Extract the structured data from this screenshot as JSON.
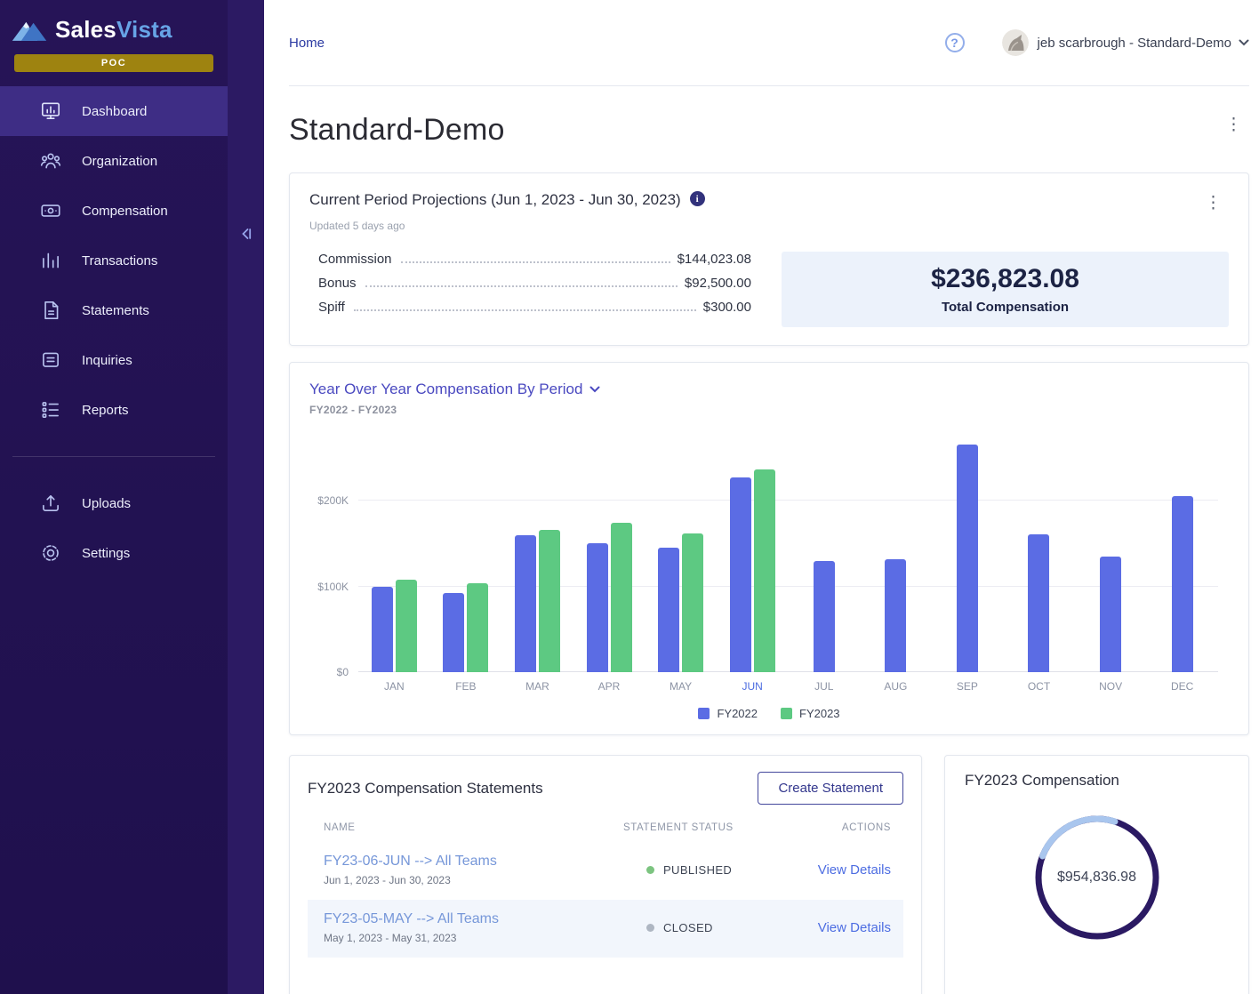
{
  "brand": {
    "name_primary": "Sales",
    "name_secondary": "Vista",
    "badge": "POC"
  },
  "icons": {
    "kebab_glyph": "⋮",
    "help_glyph": "?"
  },
  "sidebar": {
    "items": [
      {
        "label": "Dashboard",
        "icon": "dashboard-icon",
        "active": true
      },
      {
        "label": "Organization",
        "icon": "organization-icon",
        "active": false
      },
      {
        "label": "Compensation",
        "icon": "compensation-icon",
        "active": false
      },
      {
        "label": "Transactions",
        "icon": "transactions-icon",
        "active": false
      },
      {
        "label": "Statements",
        "icon": "statements-icon",
        "active": false
      },
      {
        "label": "Inquiries",
        "icon": "inquiries-icon",
        "active": false
      },
      {
        "label": "Reports",
        "icon": "reports-icon",
        "active": false
      }
    ],
    "secondary_items": [
      {
        "label": "Uploads",
        "icon": "upload-icon",
        "active": false
      },
      {
        "label": "Settings",
        "icon": "settings-icon",
        "active": false
      }
    ]
  },
  "topbar": {
    "breadcrumb": "Home",
    "user": "jeb scarbrough - Standard-Demo"
  },
  "page": {
    "title": "Standard-Demo"
  },
  "projections": {
    "title": "Current Period Projections (Jun 1, 2023 - Jun 30, 2023)",
    "updated": "Updated 5 days ago",
    "rows": [
      {
        "label": "Commission",
        "value": "$144,023.08"
      },
      {
        "label": "Bonus",
        "value": "$92,500.00"
      },
      {
        "label": "Spiff",
        "value": "$300.00"
      }
    ],
    "total": {
      "value": "$236,823.08",
      "label": "Total Compensation"
    }
  },
  "chart_card": {
    "title": "Year Over Year Compensation By Period",
    "subtitle": "FY2022 - FY2023"
  },
  "chart_data": {
    "type": "bar",
    "title": "Year Over Year Compensation By Period",
    "categories": [
      "JAN",
      "FEB",
      "MAR",
      "APR",
      "MAY",
      "JUN",
      "JUL",
      "AUG",
      "SEP",
      "OCT",
      "NOV",
      "DEC"
    ],
    "series": [
      {
        "name": "FY2022",
        "color": "#5b6ce4",
        "values": [
          100000,
          92000,
          160000,
          150000,
          145000,
          227000,
          130000,
          132000,
          265000,
          161000,
          135000,
          205000
        ]
      },
      {
        "name": "FY2023",
        "color": "#5dc982",
        "values": [
          108000,
          104000,
          166000,
          174000,
          162000,
          236000,
          null,
          null,
          null,
          null,
          null,
          null
        ]
      }
    ],
    "ylim": [
      0,
      280000
    ],
    "yticks": [
      {
        "value": 0,
        "label": "$0"
      },
      {
        "value": 100000,
        "label": "$100K"
      },
      {
        "value": 200000,
        "label": "$200K"
      }
    ],
    "highlight_category": "JUN",
    "grid": true,
    "legend_position": "bottom"
  },
  "statements": {
    "title": "FY2023 Compensation Statements",
    "create_button": "Create Statement",
    "columns": [
      "NAME",
      "STATEMENT STATUS",
      "ACTIONS"
    ],
    "rows": [
      {
        "name": "FY23-06-JUN --> All Teams",
        "dates": "Jun 1, 2023 - Jun 30, 2023",
        "status": "PUBLISHED",
        "status_color": "#7cc480",
        "action": "View Details"
      },
      {
        "name": "FY23-05-MAY --> All Teams",
        "dates": "May 1, 2023 - May 31, 2023",
        "status": "CLOSED",
        "status_color": "#aeb6c2",
        "action": "View Details"
      }
    ]
  },
  "fy_comp": {
    "title": "FY2023 Compensation",
    "value": "$954,836.98"
  },
  "colors": {
    "accent_blue": "#4d6de2",
    "bar_fy2022": "#5b6ce4",
    "bar_fy2023": "#5dc982",
    "published_green": "#7cc480",
    "closed_gray": "#aeb6c2",
    "sidebar_bg": "#231253",
    "active_item_bg": "#3e2d85",
    "poc_gold": "#9e8310",
    "total_box_bg": "#ecf2fb",
    "donut_ring": "#2b1a63",
    "donut_arc": "#a9c6ee"
  }
}
